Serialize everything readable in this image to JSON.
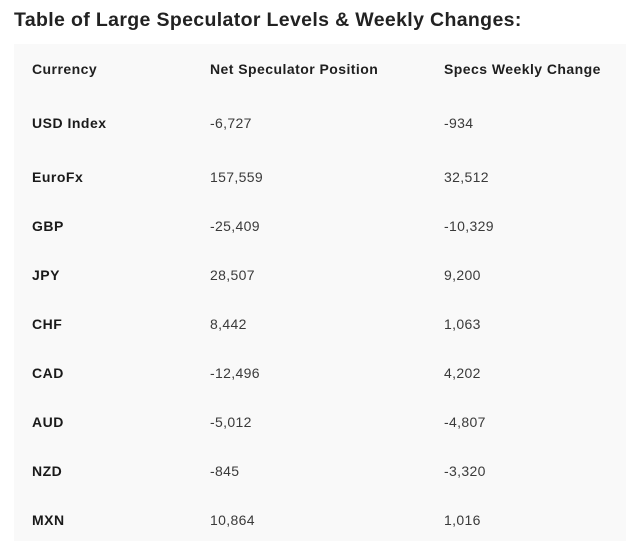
{
  "title": "Table of Large Speculator Levels & Weekly Changes:",
  "table": {
    "headers": [
      "Currency",
      "Net Speculator Position",
      "Specs Weekly Change"
    ],
    "rows": [
      [
        "USD Index",
        "-6,727",
        "-934"
      ],
      [
        "EuroFx",
        "157,559",
        "32,512"
      ],
      [
        "GBP",
        "-25,409",
        "-10,329"
      ],
      [
        "JPY",
        "28,507",
        "9,200"
      ],
      [
        "CHF",
        "8,442",
        "1,063"
      ],
      [
        "CAD",
        "-12,496",
        "4,202"
      ],
      [
        "AUD",
        "-5,012",
        "-4,807"
      ],
      [
        "NZD",
        "-845",
        "-3,320"
      ],
      [
        "MXN",
        "10,864",
        "1,016"
      ]
    ]
  },
  "colors": {
    "table_background": "#f9f9f9",
    "text": "#1a1a1a"
  }
}
